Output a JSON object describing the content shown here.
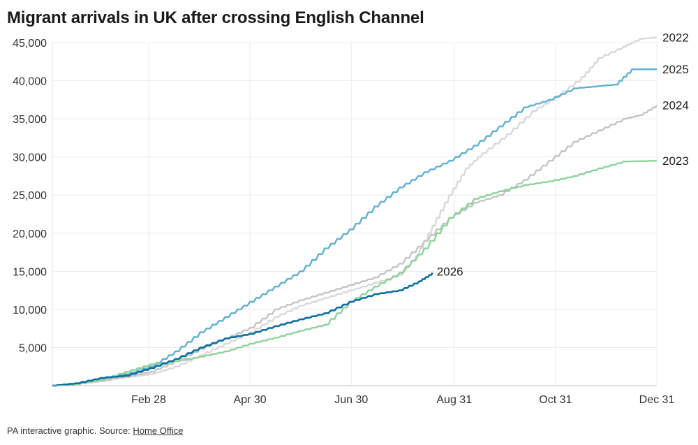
{
  "title": "Migrant arrivals in UK after crossing English Channel",
  "footer": {
    "text": "PA interactive graphic. Source: ",
    "link": "Home Office"
  },
  "chart_data": {
    "type": "line",
    "title": "Migrant arrivals in UK after crossing English Channel",
    "xlabel": "",
    "ylabel": "",
    "ylim": [
      0,
      45000
    ],
    "xlim_day_of_year": [
      1,
      365
    ],
    "grid": true,
    "x_tick_labels": [
      "Feb 28",
      "Apr 30",
      "Jun 30",
      "Aug 31",
      "Oct 31",
      "Dec 31"
    ],
    "x_tick_days": [
      59,
      120,
      181,
      243,
      304,
      365
    ],
    "y_ticks": [
      5000,
      10000,
      15000,
      20000,
      25000,
      30000,
      35000,
      40000,
      45000
    ],
    "y_tick_labels": [
      "5,000",
      "10,000",
      "15,000",
      "20,000",
      "25,000",
      "30,000",
      "35,000",
      "40,000",
      "45,000"
    ],
    "series": [
      {
        "name": "2022",
        "color": "#d9d9d9",
        "points": [
          [
            1,
            0
          ],
          [
            15,
            200
          ],
          [
            30,
            700
          ],
          [
            45,
            1100
          ],
          [
            60,
            1500
          ],
          [
            75,
            2500
          ],
          [
            90,
            4000
          ],
          [
            105,
            5500
          ],
          [
            120,
            7000
          ],
          [
            135,
            9000
          ],
          [
            150,
            10500
          ],
          [
            165,
            11500
          ],
          [
            180,
            12500
          ],
          [
            195,
            13500
          ],
          [
            210,
            14500
          ],
          [
            220,
            17000
          ],
          [
            230,
            21000
          ],
          [
            240,
            25000
          ],
          [
            250,
            28500
          ],
          [
            260,
            30500
          ],
          [
            275,
            33000
          ],
          [
            290,
            36000
          ],
          [
            305,
            38000
          ],
          [
            320,
            40500
          ],
          [
            330,
            43000
          ],
          [
            345,
            44500
          ],
          [
            355,
            45500
          ],
          [
            365,
            45700
          ]
        ]
      },
      {
        "name": "2025",
        "color": "#5fb1d3",
        "points": [
          [
            1,
            0
          ],
          [
            15,
            300
          ],
          [
            30,
            1000
          ],
          [
            45,
            1500
          ],
          [
            60,
            2500
          ],
          [
            75,
            4500
          ],
          [
            90,
            7000
          ],
          [
            105,
            9000
          ],
          [
            120,
            11000
          ],
          [
            135,
            13000
          ],
          [
            150,
            15000
          ],
          [
            165,
            18000
          ],
          [
            180,
            20500
          ],
          [
            195,
            23500
          ],
          [
            210,
            26000
          ],
          [
            225,
            28000
          ],
          [
            240,
            29500
          ],
          [
            255,
            31500
          ],
          [
            270,
            34000
          ],
          [
            285,
            36500
          ],
          [
            300,
            37500
          ],
          [
            315,
            39000
          ],
          [
            330,
            39300
          ],
          [
            340,
            39500
          ],
          [
            350,
            41500
          ],
          [
            365,
            41500
          ]
        ]
      },
      {
        "name": "2024",
        "color": "#c4c4c4",
        "points": [
          [
            1,
            0
          ],
          [
            15,
            200
          ],
          [
            30,
            600
          ],
          [
            45,
            1200
          ],
          [
            60,
            1800
          ],
          [
            75,
            3200
          ],
          [
            90,
            4800
          ],
          [
            105,
            6200
          ],
          [
            120,
            7600
          ],
          [
            135,
            10000
          ],
          [
            150,
            11200
          ],
          [
            165,
            12200
          ],
          [
            180,
            13200
          ],
          [
            195,
            14200
          ],
          [
            210,
            16000
          ],
          [
            225,
            19000
          ],
          [
            240,
            22000
          ],
          [
            255,
            24000
          ],
          [
            270,
            25000
          ],
          [
            285,
            27000
          ],
          [
            300,
            29500
          ],
          [
            315,
            32000
          ],
          [
            330,
            33500
          ],
          [
            345,
            35000
          ],
          [
            355,
            35500
          ],
          [
            365,
            36800
          ]
        ]
      },
      {
        "name": "2023",
        "color": "#8cd39a",
        "points": [
          [
            1,
            0
          ],
          [
            15,
            200
          ],
          [
            30,
            800
          ],
          [
            45,
            1800
          ],
          [
            60,
            2800
          ],
          [
            75,
            3200
          ],
          [
            90,
            3800
          ],
          [
            105,
            4500
          ],
          [
            120,
            5500
          ],
          [
            135,
            6300
          ],
          [
            150,
            7200
          ],
          [
            165,
            8000
          ],
          [
            180,
            11000
          ],
          [
            195,
            13000
          ],
          [
            210,
            14800
          ],
          [
            225,
            18000
          ],
          [
            240,
            22000
          ],
          [
            255,
            24500
          ],
          [
            270,
            25500
          ],
          [
            285,
            26300
          ],
          [
            300,
            26800
          ],
          [
            315,
            27500
          ],
          [
            330,
            28500
          ],
          [
            345,
            29400
          ],
          [
            365,
            29500
          ]
        ]
      },
      {
        "name": "2026",
        "color": "#0b6fa3",
        "points": [
          [
            1,
            0
          ],
          [
            15,
            300
          ],
          [
            30,
            1000
          ],
          [
            45,
            1300
          ],
          [
            60,
            2300
          ],
          [
            75,
            3500
          ],
          [
            90,
            5000
          ],
          [
            105,
            6200
          ],
          [
            120,
            6800
          ],
          [
            135,
            7800
          ],
          [
            150,
            8700
          ],
          [
            165,
            9500
          ],
          [
            180,
            11000
          ],
          [
            195,
            12000
          ],
          [
            210,
            12500
          ],
          [
            222,
            13700
          ],
          [
            230,
            14800
          ]
        ]
      }
    ]
  }
}
